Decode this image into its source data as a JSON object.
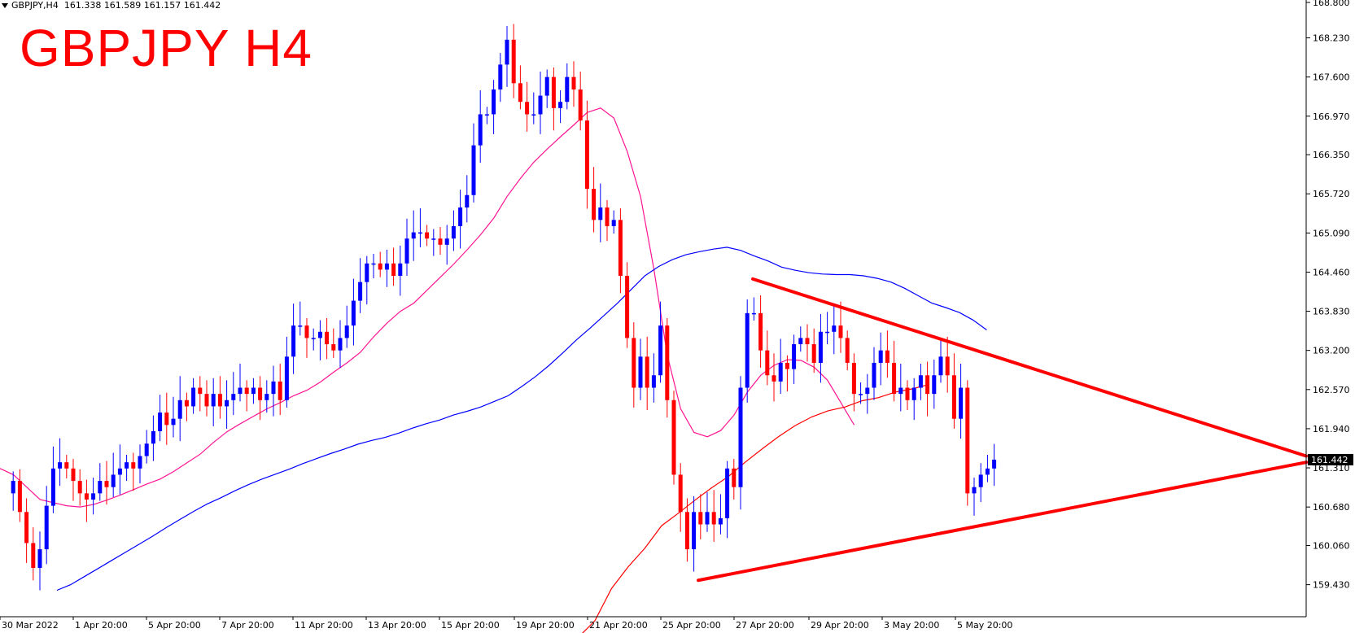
{
  "info_line": {
    "symbol": "GBPJPY,H4",
    "ohlc": "161.338 161.589 161.157 161.442"
  },
  "overlay_title": "GBPJPY H4",
  "colors": {
    "bull_candle": "#0000ff",
    "bear_candle": "#ff0000",
    "ma_fast": "#ff1493",
    "ma_mid": "#ff0000",
    "ma_slow": "#0000ff",
    "triangle": "#ff0000",
    "price_box": "#000000"
  },
  "chart_data": {
    "type": "candlestick",
    "instrument": "GBPJPY",
    "timeframe": "H4",
    "ylim": [
      159.15,
      168.8
    ],
    "y_ticks": [
      "168.800",
      "168.230",
      "167.600",
      "166.970",
      "166.350",
      "165.720",
      "165.090",
      "164.460",
      "163.830",
      "163.200",
      "162.570",
      "161.940",
      "161.310",
      "160.680",
      "160.060",
      "159.430"
    ],
    "x_ticks": [
      "30 Mar 2022",
      "1 Apr 20:00",
      "5 Apr 20:00",
      "7 Apr 20:00",
      "11 Apr 20:00",
      "13 Apr 20:00",
      "15 Apr 20:00",
      "19 Apr 20:00",
      "21 Apr 20:00",
      "25 Apr 20:00",
      "27 Apr 20:00",
      "29 Apr 20:00",
      "3 May 20:00",
      "5 May 20:00"
    ],
    "current_price": "161.442",
    "closes": [
      160.9,
      161.1,
      160.6,
      160.1,
      159.7,
      160.0,
      160.7,
      161.3,
      161.4,
      161.3,
      161.1,
      160.9,
      160.8,
      160.9,
      161.1,
      161.0,
      161.2,
      161.3,
      161.4,
      161.3,
      161.5,
      161.7,
      161.9,
      162.2,
      162.0,
      162.1,
      162.4,
      162.3,
      162.6,
      162.5,
      162.3,
      162.5,
      162.3,
      162.4,
      162.5,
      162.6,
      162.5,
      162.6,
      162.4,
      162.5,
      162.7,
      162.4,
      163.1,
      163.6,
      163.6,
      163.4,
      163.4,
      163.5,
      163.3,
      163.2,
      163.4,
      163.6,
      164.0,
      164.3,
      164.6,
      164.6,
      164.5,
      164.6,
      164.4,
      164.6,
      165.0,
      165.1,
      165.1,
      165.0,
      165.0,
      164.9,
      165.0,
      165.2,
      165.5,
      165.7,
      166.5,
      167.0,
      167.0,
      167.4,
      167.8,
      168.2,
      167.5,
      167.2,
      167.0,
      167.0,
      167.3,
      167.6,
      167.1,
      167.2,
      167.6,
      167.4,
      166.9,
      165.8,
      165.3,
      165.5,
      165.2,
      165.3,
      164.4,
      163.4,
      162.6,
      163.1,
      162.6,
      162.8,
      163.6,
      162.4,
      161.2,
      160.6,
      160.0,
      160.6,
      160.4,
      160.6,
      160.4,
      160.5,
      161.3,
      161.0,
      162.6,
      163.8,
      163.8,
      163.2,
      162.8,
      162.7,
      163.0,
      162.9,
      163.3,
      163.4,
      163.3,
      163.0,
      163.5,
      163.5,
      163.6,
      163.4,
      163.0,
      162.5,
      162.5,
      162.6,
      163.0,
      163.2,
      163.0,
      162.5,
      162.6,
      162.4,
      162.6,
      162.8,
      162.5,
      162.8,
      163.1,
      162.8,
      162.1,
      162.6,
      160.9,
      161.0,
      161.2,
      161.3,
      161.442
    ],
    "moving_averages": [
      {
        "color": "pink",
        "values": [
          161.3,
          161.2,
          161.0,
          160.8,
          160.75,
          160.7,
          160.68,
          160.72,
          160.79,
          160.87,
          160.96,
          161.05,
          161.13,
          161.25,
          161.39,
          161.53,
          161.72,
          161.89,
          162.02,
          162.14,
          162.26,
          162.36,
          162.47,
          162.56,
          162.69,
          162.85,
          163.0,
          163.17,
          163.42,
          163.64,
          163.83,
          163.96,
          164.17,
          164.38,
          164.59,
          164.82,
          165.06,
          165.33,
          165.68,
          165.97,
          166.23,
          166.44,
          166.64,
          166.83,
          167.03,
          167.1,
          166.94,
          166.4,
          165.67,
          164.5,
          163.12,
          162.26,
          161.88,
          161.81,
          161.91,
          162.16,
          162.53,
          162.8,
          162.96,
          163.05,
          163.04,
          162.93,
          162.72,
          162.36,
          162.0
        ]
      },
      {
        "color": "red",
        "values": [
          158.28,
          158.58,
          158.85,
          159.37,
          159.72,
          160.02,
          160.38,
          160.58,
          160.79,
          160.99,
          161.17,
          161.4,
          161.61,
          161.81,
          161.99,
          162.13,
          162.23,
          162.29,
          162.39,
          162.44,
          162.53,
          162.58,
          162.65
        ]
      },
      {
        "color": "blue",
        "values": [
          159.34,
          159.43,
          159.56,
          159.69,
          159.82,
          159.95,
          160.08,
          160.21,
          160.35,
          160.48,
          160.61,
          160.73,
          160.83,
          160.94,
          161.04,
          161.13,
          161.21,
          161.29,
          161.38,
          161.46,
          161.54,
          161.61,
          161.69,
          161.75,
          161.8,
          161.87,
          161.95,
          162.02,
          162.08,
          162.16,
          162.22,
          162.29,
          162.38,
          162.47,
          162.62,
          162.78,
          162.96,
          163.16,
          163.37,
          163.56,
          163.76,
          163.96,
          164.18,
          164.4,
          164.55,
          164.66,
          164.74,
          164.79,
          164.83,
          164.86,
          164.81,
          164.72,
          164.64,
          164.54,
          164.49,
          164.45,
          164.43,
          164.42,
          164.42,
          164.4,
          164.36,
          164.3,
          164.2,
          164.08,
          163.96,
          163.89,
          163.81,
          163.69,
          163.53
        ]
      }
    ],
    "annotations": [
      {
        "type": "trendline",
        "label": "triangle-upper",
        "from": [
          "27 Apr 20:00",
          164.35
        ],
        "to": [
          "right edge",
          161.5
        ]
      },
      {
        "type": "trendline",
        "label": "triangle-lower",
        "from": [
          "25 Apr 20:00",
          159.5
        ],
        "to": [
          "right edge",
          161.4
        ]
      }
    ],
    "grid": false
  }
}
